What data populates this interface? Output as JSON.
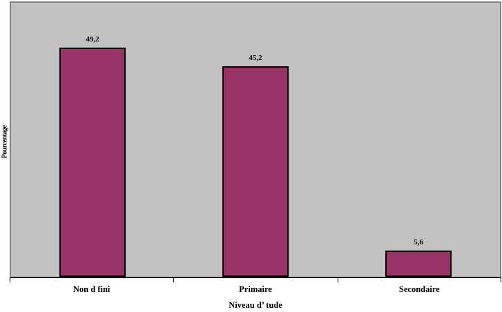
{
  "chart_data": {
    "type": "bar",
    "categories": [
      "Non d fini",
      "Primaire",
      "Secondaire"
    ],
    "values": [
      49.2,
      45.2,
      5.6
    ],
    "value_labels": [
      "49,2",
      "45,2",
      "5,6"
    ],
    "xlabel": "Niveau d’ tude",
    "ylabel": "Pourcentage",
    "ylim": [
      0,
      60
    ],
    "grid": false,
    "legend": false,
    "bar_color": "#993366",
    "bar_border_color": "#000000",
    "plot_background": "#c2c2c2",
    "frame_color": "#848484",
    "axis_color": "#000000",
    "text_color": "#000000",
    "outer_background": "#ffffff"
  }
}
